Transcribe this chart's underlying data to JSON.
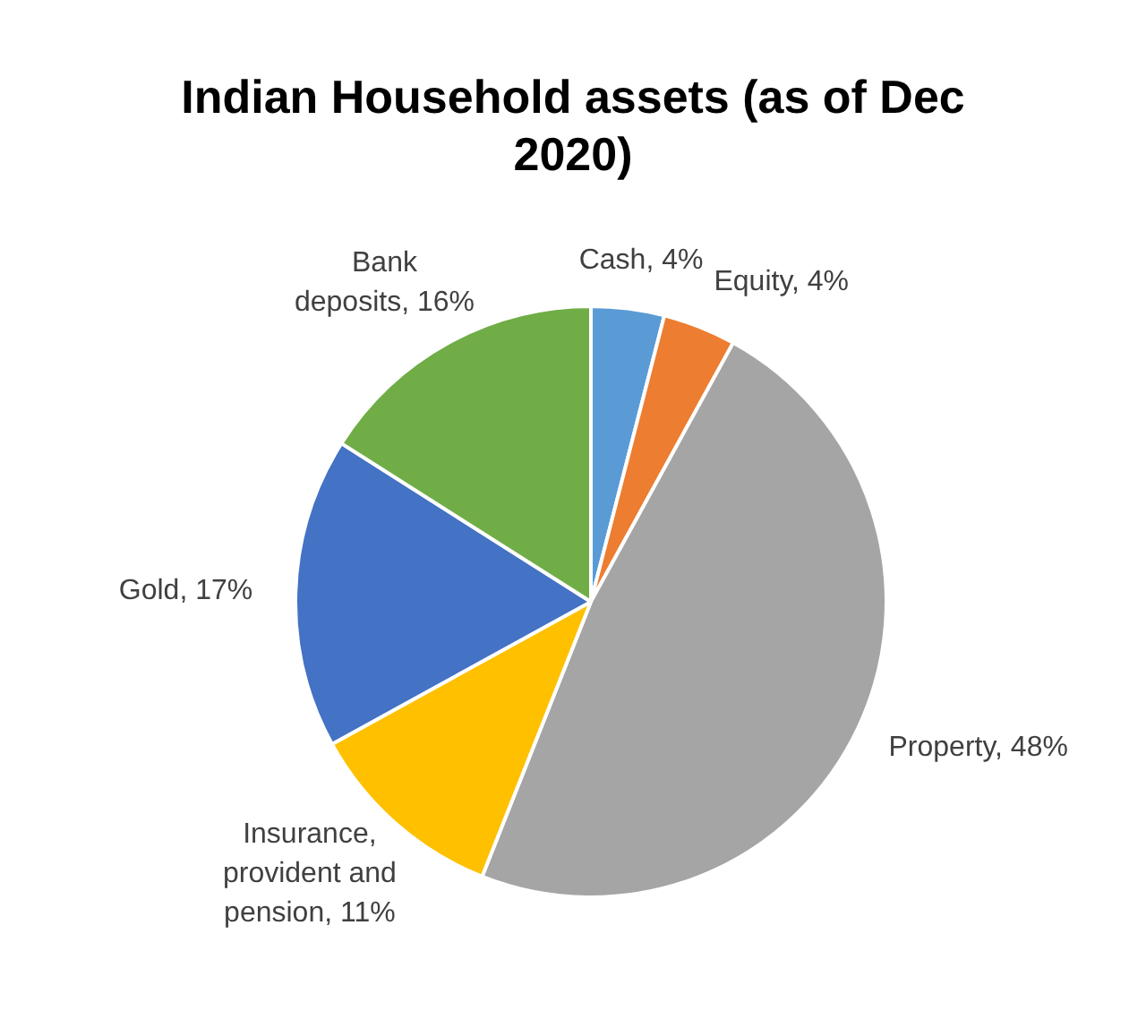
{
  "chart_data": {
    "type": "pie",
    "title": "Indian Household assets (as of Dec 2020)",
    "categories": [
      "Cash",
      "Equity",
      "Property",
      "Insurance, provident and pension",
      "Gold",
      "Bank deposits"
    ],
    "values": [
      4,
      4,
      48,
      11,
      17,
      16
    ],
    "colors": [
      "#5b9bd5",
      "#ed7d31",
      "#a5a5a5",
      "#ffc000",
      "#4472c4",
      "#70ad47"
    ],
    "value_labels": [
      "4%",
      "4%",
      "48%",
      "11%",
      "17%",
      "16%"
    ],
    "legend": false
  }
}
